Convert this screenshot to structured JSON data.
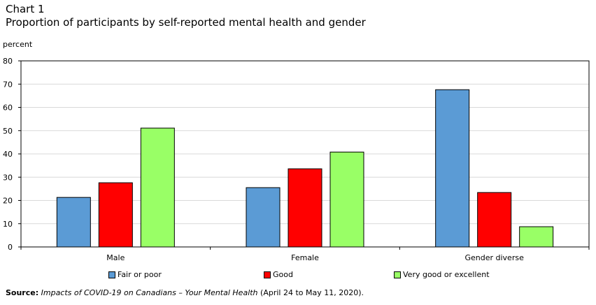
{
  "header": {
    "chart_number": "Chart 1",
    "title": "Proportion of participants by self-reported mental health and gender"
  },
  "source": {
    "label": "Source:",
    "publication": "Impacts of COVID-19 on Canadians – Your Mental Health",
    "dates": " (April 24 to May 11, 2020)."
  },
  "chart_data": {
    "type": "bar",
    "ylabel": "percent",
    "xlabel": "",
    "ylim": [
      0,
      80
    ],
    "yticks": [
      0,
      10,
      20,
      30,
      40,
      50,
      60,
      70,
      80
    ],
    "grid": true,
    "legend_position": "bottom",
    "categories": [
      "Male",
      "Female",
      "Gender diverse"
    ],
    "series": [
      {
        "name": "Fair or poor",
        "color": "#5b9bd5",
        "values": [
          21.3,
          25.5,
          67.6
        ]
      },
      {
        "name": "Good",
        "color": "#ff0000",
        "values": [
          27.6,
          33.6,
          23.4
        ]
      },
      {
        "name": "Very good or excellent",
        "color": "#99ff66",
        "values": [
          51.1,
          40.8,
          8.7
        ]
      }
    ]
  }
}
